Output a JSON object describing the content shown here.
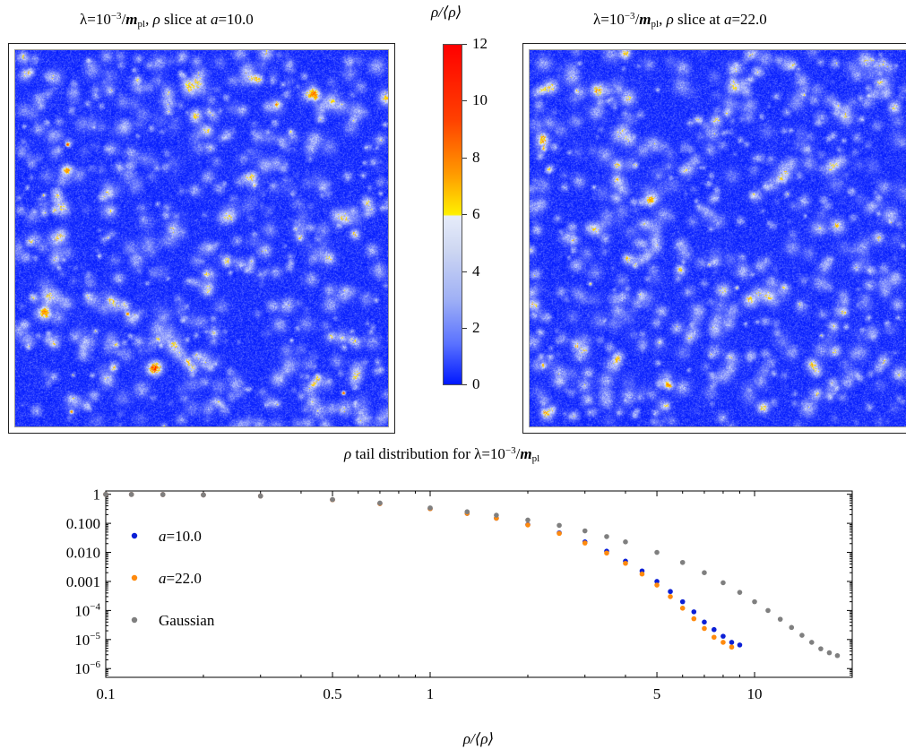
{
  "panels": [
    {
      "title_prefix": "λ=10",
      "title_exp": "−3",
      "title_mid": "/",
      "title_m": "m",
      "title_sub": "pl",
      "title_rest": ", ",
      "title_rho": "ρ",
      "title_slice": " slice at ",
      "title_a": "a",
      "title_aval": "=10.0"
    },
    {
      "title_prefix": "λ=10",
      "title_exp": "−3",
      "title_mid": "/",
      "title_m": "m",
      "title_sub": "pl",
      "title_rest": ", ",
      "title_rho": "ρ",
      "title_slice": " slice at ",
      "title_a": "a",
      "title_aval": "=22.0"
    }
  ],
  "colorbar": {
    "label": "ρ/⟨ρ⟩",
    "ticks": [
      "12",
      "10",
      "8",
      "6",
      "4",
      "2",
      "0"
    ],
    "range": [
      0,
      12
    ],
    "colors": {
      "low": "#0018ff",
      "mid": "#e6ecfa",
      "threshold": "#fff000",
      "high": "#ff0000"
    }
  },
  "tail_title": {
    "rho": "ρ",
    "text": " tail distribution for λ=10",
    "exp": "−3",
    "slash": "/",
    "m": "m",
    "sub": "pl"
  },
  "chart_data": {
    "type": "scatter",
    "x_scale": "log",
    "y_scale": "log",
    "xlim": [
      0.1,
      20
    ],
    "ylim": [
      5e-07,
      1.3
    ],
    "xlabel": "ρ/⟨ρ⟩",
    "x_ticks": [
      "0.1",
      "0.5",
      "1",
      "5",
      "10"
    ],
    "x_tick_values": [
      0.1,
      0.5,
      1,
      5,
      10
    ],
    "y_ticks": [
      "1",
      "0.100",
      "0.010",
      "0.001",
      "10−4",
      "10−5",
      "10−6"
    ],
    "y_tick_values": [
      1,
      0.1,
      0.01,
      0.001,
      0.0001,
      1e-05,
      1e-06
    ],
    "legend_position": "left",
    "series": [
      {
        "name": "a=10.0",
        "color": "#0b1fd6",
        "x": [
          0.1,
          0.12,
          0.15,
          0.2,
          0.3,
          0.5,
          0.7,
          1.0,
          1.3,
          1.6,
          2.0,
          2.5,
          3.0,
          3.5,
          4.0,
          4.5,
          5.0,
          5.5,
          6.0,
          6.5,
          7.0,
          7.5,
          8.0,
          8.5,
          9.0
        ],
        "y": [
          0.995,
          0.99,
          0.98,
          0.95,
          0.87,
          0.65,
          0.48,
          0.32,
          0.22,
          0.15,
          0.09,
          0.047,
          0.023,
          0.011,
          0.005,
          0.0023,
          0.001,
          0.00045,
          0.0002,
          9e-05,
          4e-05,
          2.2e-05,
          1.3e-05,
          8e-06,
          6.5e-06
        ]
      },
      {
        "name": "a=22.0",
        "color": "#ff8a0d",
        "x": [
          0.1,
          0.12,
          0.15,
          0.2,
          0.3,
          0.5,
          0.7,
          1.0,
          1.3,
          1.6,
          2.0,
          2.5,
          3.0,
          3.5,
          4.0,
          4.5,
          5.0,
          5.5,
          6.0,
          6.5,
          7.0,
          7.5,
          8.0,
          8.5
        ],
        "y": [
          0.995,
          0.99,
          0.98,
          0.95,
          0.87,
          0.65,
          0.48,
          0.32,
          0.22,
          0.15,
          0.088,
          0.045,
          0.021,
          0.0095,
          0.0042,
          0.0018,
          0.00075,
          0.0003,
          0.00012,
          5.2e-05,
          2.4e-05,
          1.2e-05,
          8e-06,
          5.5e-06
        ]
      },
      {
        "name": "Gaussian",
        "color": "#7f7f7f",
        "x": [
          0.1,
          0.12,
          0.15,
          0.2,
          0.3,
          0.5,
          0.7,
          1.0,
          1.3,
          1.6,
          2.0,
          2.5,
          3.0,
          3.5,
          4.0,
          5.0,
          6.0,
          7.0,
          8.0,
          9.0,
          10.0,
          11.0,
          12.0,
          13.0,
          14.0,
          15.0,
          16.0,
          17.0,
          18.0
        ],
        "y": [
          0.995,
          0.99,
          0.98,
          0.95,
          0.87,
          0.66,
          0.5,
          0.34,
          0.25,
          0.19,
          0.13,
          0.085,
          0.055,
          0.035,
          0.023,
          0.01,
          0.0045,
          0.002,
          0.0009,
          0.00042,
          0.0002,
          0.0001,
          5e-05,
          2.6e-05,
          1.4e-05,
          8e-06,
          4.8e-06,
          3.5e-06,
          2.8e-06
        ]
      }
    ]
  }
}
